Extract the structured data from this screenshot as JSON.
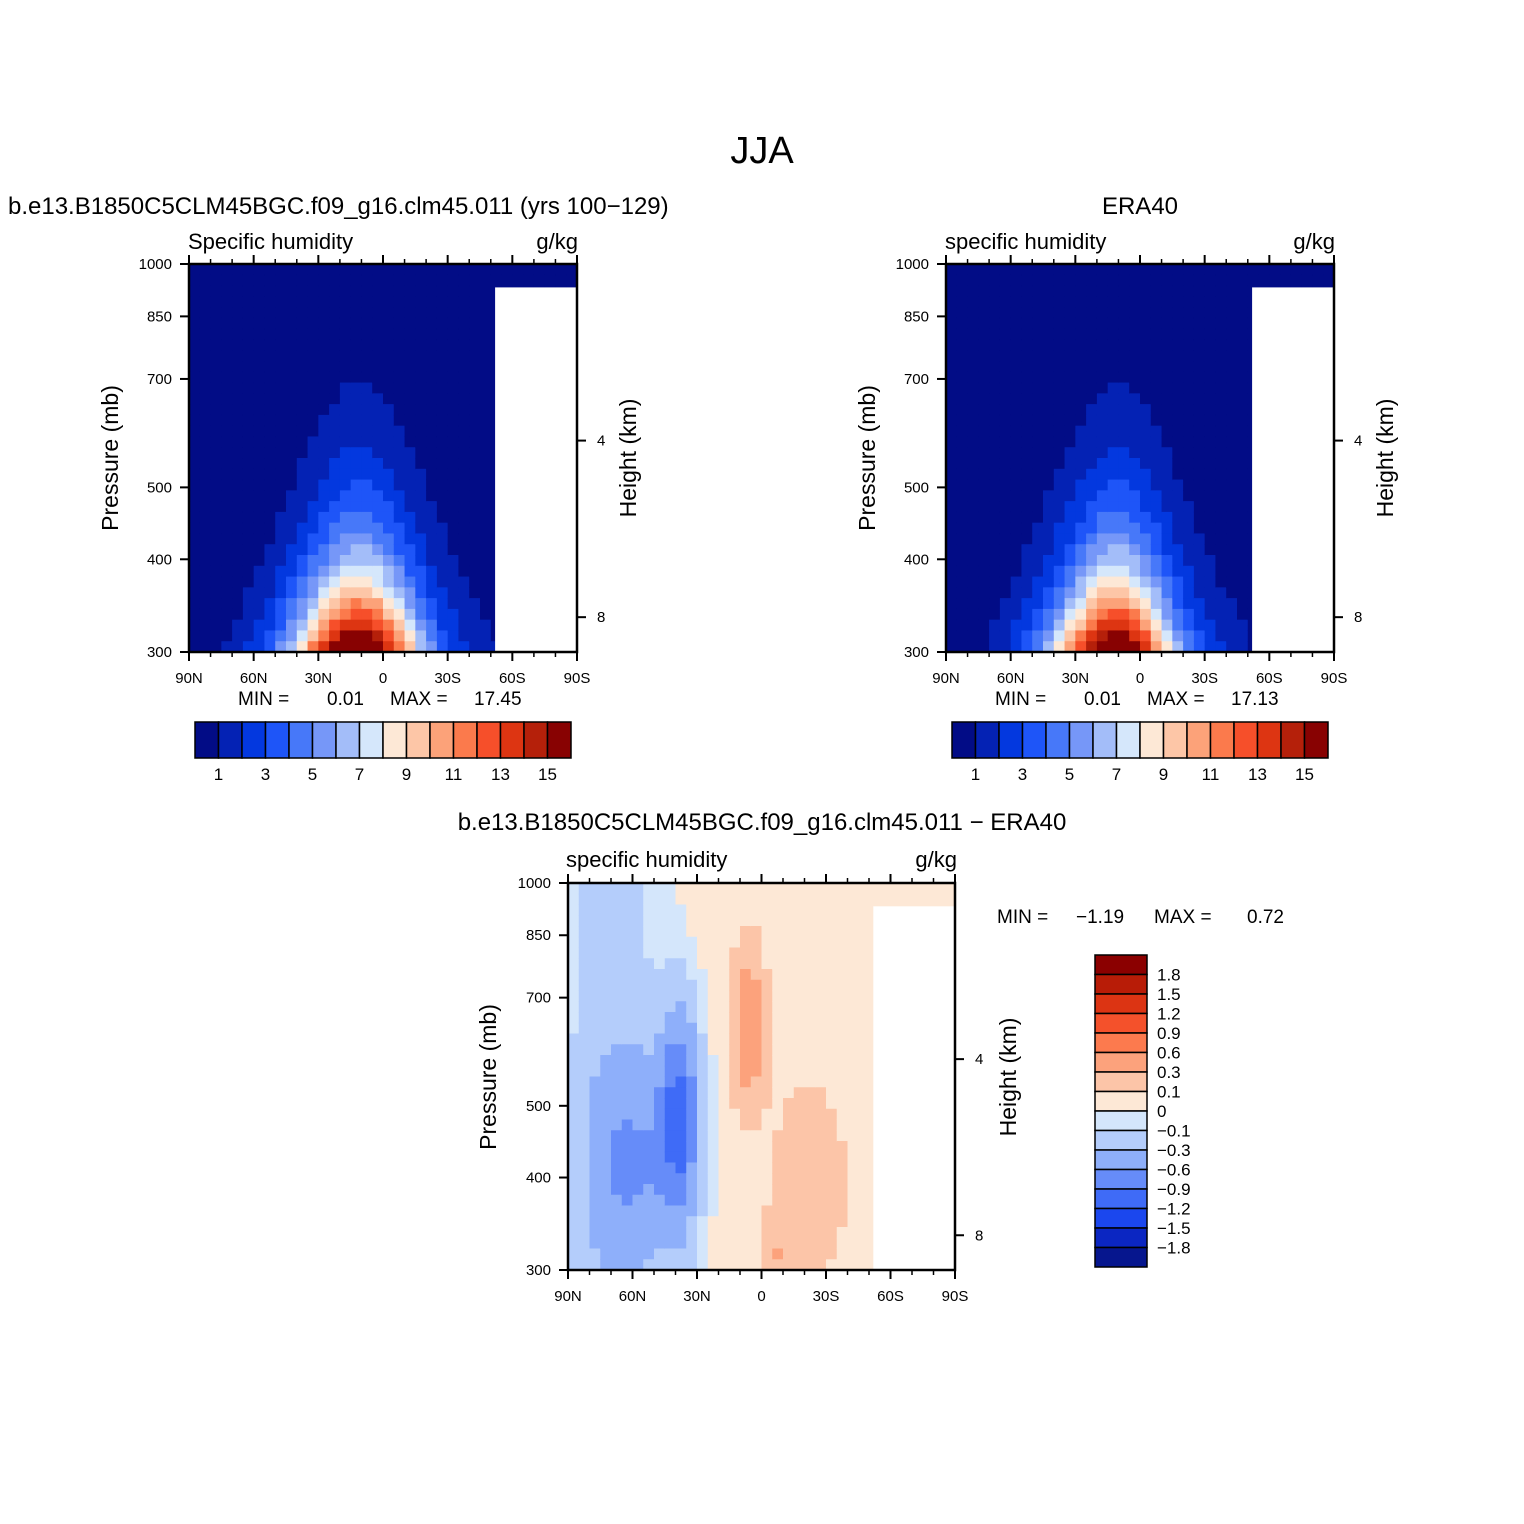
{
  "figure": {
    "title": "JJA"
  },
  "colors": {
    "positive": [
      "#fde8d6",
      "#fcc5a8",
      "#fca27c",
      "#fc7a4e",
      "#f4512b",
      "#dc3413",
      "#b81c07",
      "#8b0000"
    ],
    "zero_band": "#d4e6fb",
    "negative": [
      "#d4e6fb",
      "#b4cdfb",
      "#8eaffa",
      "#668cf9",
      "#3f6bf7",
      "#1b47ee",
      "#0b26c2",
      "#06168e"
    ],
    "humidity_levels": [
      "#020c86",
      "#0422b4",
      "#0338df",
      "#1e55f8",
      "#4778f9",
      "#7697f8",
      "#a3bdf9",
      "#d5e7fb",
      "#fde8d6",
      "#fdc6a7",
      "#fca279",
      "#fb7a4c",
      "#f64f2a",
      "#dd3512",
      "#b5200a",
      "#880202"
    ],
    "missing": "#ffffff"
  },
  "chart_data": [
    {
      "type": "heatmap",
      "panel_title": "b.e13.B1850C5CLM45BGC.f09_g16.clm45.011 (yrs 100−129)",
      "left_title": "Specific humidity",
      "right_title": "g/kg",
      "xlabel": "",
      "ylabel": "Pressure (mb)",
      "ylabel_right": "Height (km)",
      "x_ticks": [
        "90N",
        "60N",
        "30N",
        "0",
        "30S",
        "60S",
        "90S"
      ],
      "x_range": [
        90,
        -90
      ],
      "y_ticks": [
        "300",
        "400",
        "500",
        "700",
        "850",
        "1000"
      ],
      "y_range": [
        1000,
        300
      ],
      "right_ticks": [
        "8",
        "4"
      ],
      "stats": {
        "min_label": "MIN =",
        "min_value": "0.01",
        "max_label": "MAX =",
        "max_value": "17.45"
      },
      "colorbar_labels": [
        "1",
        "3",
        "5",
        "7",
        "9",
        "11",
        "13",
        "15"
      ],
      "field": {
        "kind": "humidity",
        "peak": 17.45,
        "center_lat": 10,
        "width": 27,
        "scale_height": 1.9
      }
    },
    {
      "type": "heatmap",
      "panel_title": "ERA40",
      "left_title": "specific humidity",
      "right_title": "g/kg",
      "xlabel": "",
      "ylabel": "Pressure (mb)",
      "ylabel_right": "Height (km)",
      "x_ticks": [
        "90N",
        "60N",
        "30N",
        "0",
        "30S",
        "60S",
        "90S"
      ],
      "x_range": [
        90,
        -90
      ],
      "y_ticks": [
        "300",
        "400",
        "500",
        "700",
        "850",
        "1000"
      ],
      "y_range": [
        1000,
        300
      ],
      "right_ticks": [
        "8",
        "4"
      ],
      "stats": {
        "min_label": "MIN =",
        "min_value": "0.01",
        "max_label": "MAX =",
        "max_value": "17.13"
      },
      "colorbar_labels": [
        "1",
        "3",
        "5",
        "7",
        "9",
        "11",
        "13",
        "15"
      ],
      "field": {
        "kind": "humidity",
        "peak": 17.13,
        "center_lat": 10,
        "width": 26,
        "scale_height": 1.9
      }
    },
    {
      "type": "heatmap",
      "panel_title": "b.e13.B1850C5CLM45BGC.f09_g16.clm45.011 − ERA40",
      "left_title": "specific humidity",
      "right_title": "g/kg",
      "xlabel": "",
      "ylabel": "Pressure (mb)",
      "ylabel_right": "Height (km)",
      "x_ticks": [
        "90N",
        "60N",
        "30N",
        "0",
        "30S",
        "60S",
        "90S"
      ],
      "x_range": [
        90,
        -90
      ],
      "y_ticks": [
        "300",
        "400",
        "500",
        "700",
        "850",
        "1000"
      ],
      "y_range": [
        1000,
        300
      ],
      "right_ticks": [
        "8",
        "4"
      ],
      "stats": {
        "min_label": "MIN =",
        "min_value": "−1.19",
        "max_label": "MAX =",
        "max_value": "0.72"
      },
      "colorbar_labels": [
        "1.8",
        "1.5",
        "1.2",
        "0.9",
        "0.6",
        "0.3",
        "0.1",
        "0",
        "−0.1",
        "−0.3",
        "−0.6",
        "−0.9",
        "−1.2",
        "−1.5",
        "−1.8"
      ],
      "colorbar_levels": [
        1.8,
        1.5,
        1.2,
        0.9,
        0.6,
        0.3,
        0.1,
        0,
        -0.1,
        -0.3,
        -0.6,
        -0.9,
        -1.2,
        -1.5,
        -1.8
      ],
      "field": {
        "kind": "difference",
        "min": -1.19,
        "max": 0.72
      }
    }
  ]
}
